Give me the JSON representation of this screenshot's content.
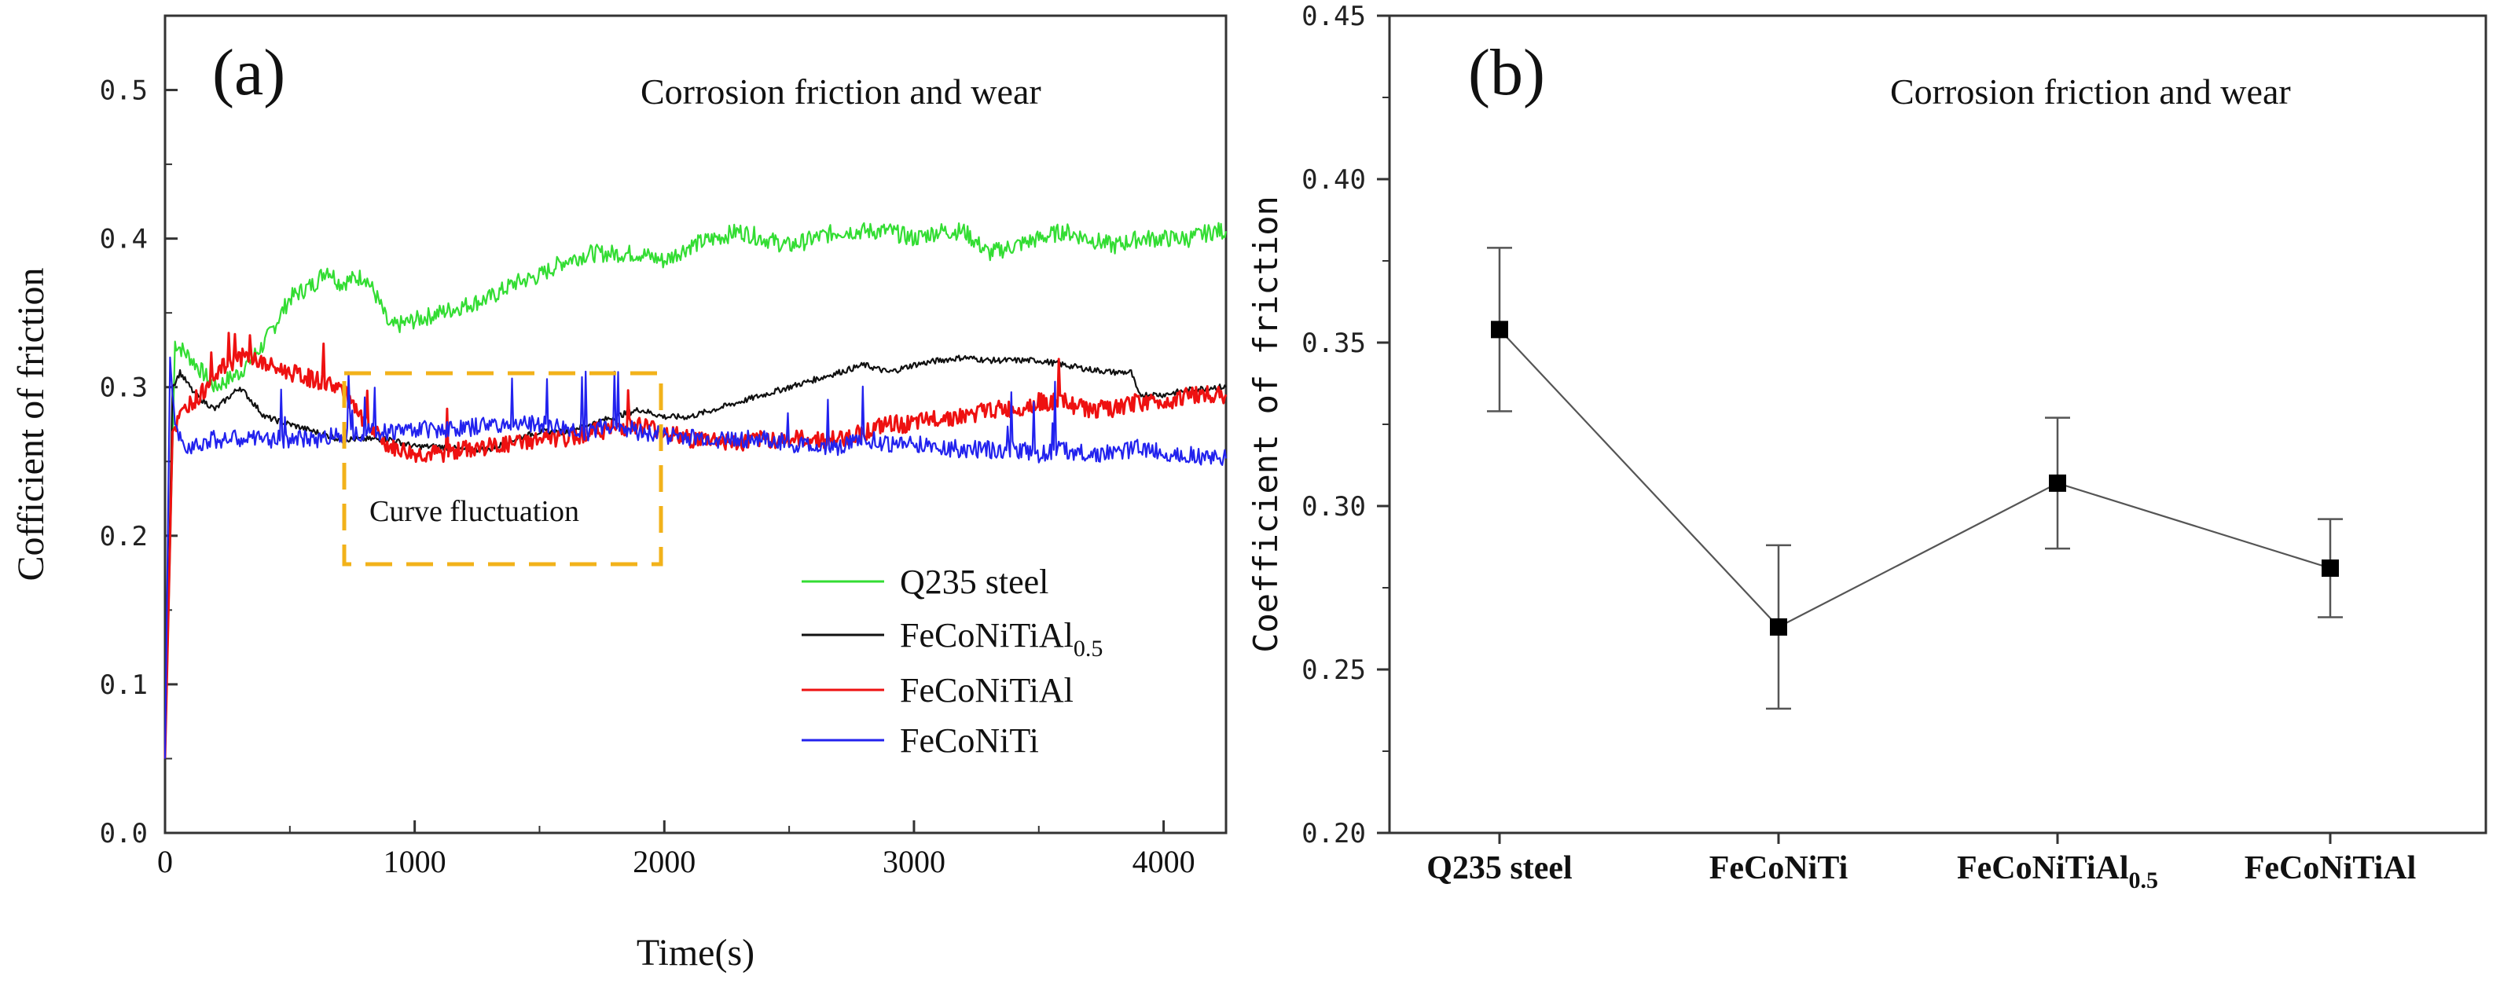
{
  "chart_data": [
    {
      "panel": "(a)",
      "type": "line",
      "annotation": "Corrosion friction and wear",
      "xlabel": "Time(s)",
      "ylabel": "Cofficient of friction",
      "xlim": [
        0,
        4250
      ],
      "ylim": [
        0.0,
        0.55
      ],
      "xticks": [
        "0",
        "1000",
        "2000",
        "3000",
        "4000"
      ],
      "yticks": [
        "0.0",
        "0.1",
        "0.2",
        "0.3",
        "0.4",
        "0.5"
      ],
      "highlight_box": {
        "label": "Curve fluctuation",
        "x_range": [
          720,
          1990
        ],
        "y_range": [
          0.182,
          0.312
        ]
      },
      "series": [
        {
          "name": "Q235 steel",
          "color": "#33dd33",
          "x": [
            0,
            40,
            100,
            200,
            300,
            400,
            500,
            600,
            650,
            700,
            800,
            850,
            900,
            1000,
            1100,
            1200,
            1300,
            1400,
            1500,
            1600,
            1700,
            1800,
            1900,
            2000,
            2100,
            2200,
            2300,
            2400,
            2500,
            2600,
            2700,
            2800,
            2900,
            3000,
            3100,
            3200,
            3300,
            3400,
            3500,
            3600,
            3700,
            3800,
            3900,
            4000,
            4100,
            4200,
            4250
          ],
          "y": [
            0.05,
            0.33,
            0.32,
            0.3,
            0.31,
            0.33,
            0.36,
            0.37,
            0.38,
            0.37,
            0.375,
            0.36,
            0.34,
            0.345,
            0.35,
            0.355,
            0.36,
            0.37,
            0.375,
            0.385,
            0.39,
            0.39,
            0.39,
            0.385,
            0.395,
            0.4,
            0.405,
            0.4,
            0.395,
            0.4,
            0.405,
            0.405,
            0.405,
            0.4,
            0.405,
            0.405,
            0.39,
            0.395,
            0.4,
            0.405,
            0.4,
            0.395,
            0.4,
            0.4,
            0.4,
            0.405,
            0.405
          ]
        },
        {
          "name": "FeCoNiTiAl0.5",
          "color": "#111111",
          "x": [
            0,
            30,
            60,
            120,
            200,
            300,
            400,
            500,
            600,
            700,
            800,
            900,
            1000,
            1100,
            1200,
            1300,
            1400,
            1500,
            1600,
            1700,
            1800,
            1900,
            2000,
            2100,
            2200,
            2300,
            2400,
            2500,
            2600,
            2700,
            2800,
            2900,
            3000,
            3100,
            3200,
            3300,
            3400,
            3500,
            3600,
            3700,
            3800,
            3870,
            3900,
            4000,
            4100,
            4200,
            4250
          ],
          "y": [
            0.05,
            0.3,
            0.31,
            0.295,
            0.285,
            0.3,
            0.28,
            0.275,
            0.27,
            0.265,
            0.265,
            0.265,
            0.26,
            0.26,
            0.258,
            0.258,
            0.265,
            0.27,
            0.27,
            0.275,
            0.28,
            0.285,
            0.28,
            0.28,
            0.285,
            0.29,
            0.295,
            0.3,
            0.305,
            0.31,
            0.315,
            0.31,
            0.315,
            0.318,
            0.32,
            0.318,
            0.318,
            0.318,
            0.315,
            0.312,
            0.31,
            0.31,
            0.295,
            0.295,
            0.298,
            0.3,
            0.3
          ]
        },
        {
          "name": "FeCoNiTiAl",
          "color": "#ee1111",
          "x": [
            0,
            30,
            60,
            100,
            150,
            200,
            250,
            300,
            350,
            400,
            500,
            600,
            700,
            800,
            900,
            1000,
            1100,
            1200,
            1300,
            1400,
            1500,
            1600,
            1700,
            1800,
            1900,
            2000,
            2100,
            2200,
            2300,
            2400,
            2500,
            2600,
            2700,
            2800,
            2900,
            3000,
            3100,
            3200,
            3300,
            3400,
            3500,
            3600,
            3700,
            3800,
            3900,
            4000,
            4100,
            4200,
            4250
          ],
          "y": [
            0.05,
            0.27,
            0.28,
            0.29,
            0.295,
            0.31,
            0.315,
            0.32,
            0.32,
            0.315,
            0.31,
            0.305,
            0.3,
            0.275,
            0.26,
            0.255,
            0.255,
            0.258,
            0.26,
            0.262,
            0.265,
            0.265,
            0.27,
            0.272,
            0.275,
            0.27,
            0.265,
            0.265,
            0.262,
            0.265,
            0.265,
            0.265,
            0.265,
            0.27,
            0.275,
            0.275,
            0.28,
            0.28,
            0.285,
            0.285,
            0.29,
            0.29,
            0.285,
            0.285,
            0.29,
            0.29,
            0.295,
            0.295,
            0.295
          ]
        },
        {
          "name": "FeCoNiTi",
          "color": "#2222ee",
          "x": [
            0,
            20,
            40,
            80,
            120,
            200,
            300,
            400,
            500,
            600,
            700,
            800,
            900,
            1000,
            1100,
            1200,
            1300,
            1400,
            1500,
            1600,
            1700,
            1800,
            1900,
            2000,
            2100,
            2200,
            2300,
            2400,
            2500,
            2600,
            2700,
            2800,
            2900,
            3000,
            3100,
            3200,
            3300,
            3400,
            3500,
            3600,
            3700,
            3800,
            3900,
            4000,
            4100,
            4200,
            4250
          ],
          "y": [
            0.05,
            0.32,
            0.27,
            0.26,
            0.262,
            0.265,
            0.265,
            0.265,
            0.265,
            0.265,
            0.268,
            0.27,
            0.27,
            0.272,
            0.272,
            0.272,
            0.275,
            0.275,
            0.275,
            0.272,
            0.27,
            0.275,
            0.27,
            0.268,
            0.266,
            0.265,
            0.265,
            0.265,
            0.262,
            0.26,
            0.26,
            0.265,
            0.262,
            0.262,
            0.26,
            0.258,
            0.258,
            0.258,
            0.255,
            0.258,
            0.255,
            0.255,
            0.26,
            0.255,
            0.255,
            0.252,
            0.252
          ]
        }
      ]
    },
    {
      "panel": "(b)",
      "type": "scatter",
      "annotation": "Corrosion friction and wear",
      "ylabel": "Coefficient of friction",
      "ylim": [
        0.2,
        0.45
      ],
      "yticks": [
        "0.20",
        "0.25",
        "0.30",
        "0.35",
        "0.40",
        "0.45"
      ],
      "categories": [
        "Q235 steel",
        "FeCoNiTi",
        "FeCoNiTiAl0.5",
        "FeCoNiTiAl"
      ],
      "values": [
        0.354,
        0.263,
        0.307,
        0.281
      ],
      "errors": [
        0.025,
        0.025,
        0.02,
        0.015
      ]
    }
  ]
}
